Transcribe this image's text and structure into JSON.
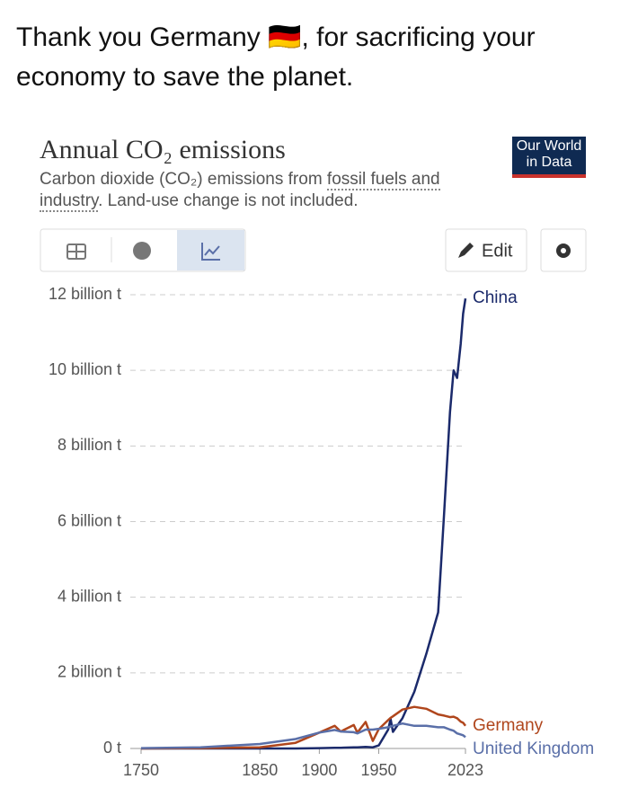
{
  "post": {
    "text": "Thank you Germany 🇩🇪, for sacrificing your economy to save the planet."
  },
  "logo": {
    "text": "Our World in Data"
  },
  "toolbar": {
    "edit": "Edit"
  },
  "chart_data": {
    "type": "line",
    "title": "Annual CO₂ emissions",
    "subtitle": {
      "before": "Carbon dioxide (CO₂) emissions from ",
      "link": "fossil fuels and industry",
      "after": ". Land-use change is not included."
    },
    "x": [
      1750,
      1800,
      1850,
      1880,
      1900,
      1913,
      1918,
      1929,
      1932,
      1939,
      1945,
      1950,
      1958,
      1960,
      1962,
      1970,
      1980,
      1990,
      2000,
      2005,
      2010,
      2013,
      2016,
      2019,
      2021,
      2023
    ],
    "xlim": [
      1750,
      2023
    ],
    "xticks": [
      1750,
      1850,
      1900,
      1950,
      2023
    ],
    "ylim": [
      0,
      12
    ],
    "yticks": [
      {
        "value": 0,
        "label": "0 t"
      },
      {
        "value": 2,
        "label": "2 billion t"
      },
      {
        "value": 4,
        "label": "4 billion t"
      },
      {
        "value": 6,
        "label": "6 billion t"
      },
      {
        "value": 8,
        "label": "8 billion t"
      },
      {
        "value": 10,
        "label": "10 billion t"
      },
      {
        "value": 12,
        "label": "12 billion t"
      }
    ],
    "grid": true,
    "series": [
      {
        "name": "China",
        "color": "#1b2a6b",
        "values": [
          0,
          0,
          0,
          0,
          0.01,
          0.02,
          0.02,
          0.03,
          0.03,
          0.04,
          0.03,
          0.08,
          0.5,
          0.78,
          0.44,
          0.8,
          1.5,
          2.5,
          3.6,
          6.2,
          8.9,
          10.0,
          9.8,
          10.7,
          11.5,
          11.9
        ]
      },
      {
        "name": "Germany",
        "color": "#b0461c",
        "values": [
          0,
          0.01,
          0.03,
          0.15,
          0.42,
          0.6,
          0.45,
          0.62,
          0.42,
          0.7,
          0.2,
          0.51,
          0.75,
          0.81,
          0.85,
          1.03,
          1.1,
          1.05,
          0.9,
          0.87,
          0.83,
          0.84,
          0.8,
          0.71,
          0.68,
          0.6
        ]
      },
      {
        "name": "United Kingdom",
        "color": "#5a6fa8",
        "values": [
          0.01,
          0.03,
          0.12,
          0.25,
          0.42,
          0.49,
          0.45,
          0.43,
          0.4,
          0.5,
          0.5,
          0.52,
          0.56,
          0.58,
          0.6,
          0.66,
          0.6,
          0.6,
          0.56,
          0.56,
          0.5,
          0.47,
          0.4,
          0.37,
          0.35,
          0.3
        ]
      }
    ]
  }
}
